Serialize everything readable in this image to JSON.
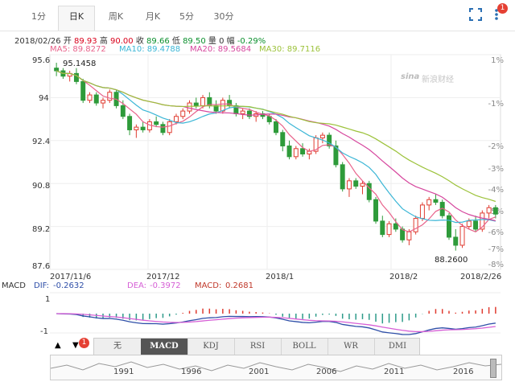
{
  "tabs": [
    {
      "label": "1分",
      "active": false
    },
    {
      "label": "日K",
      "active": true
    },
    {
      "label": "周K",
      "active": false
    },
    {
      "label": "月K",
      "active": false
    },
    {
      "label": "5分",
      "active": false
    },
    {
      "label": "30分",
      "active": false
    }
  ],
  "toolbar": {
    "fullscreen_icon": "fullscreen-icon",
    "more_icon": "more-vertical-icon",
    "badge": "1"
  },
  "quote": {
    "date": "2018/02/26",
    "open_label": "开",
    "open": "89.93",
    "high_label": "高",
    "high": "90.00",
    "close_label": "收",
    "close": "89.66",
    "low_label": "低",
    "low": "89.50",
    "vol_label": "量",
    "vol": "0",
    "chg_label": "幅",
    "chg": "-0.29%"
  },
  "ma": {
    "ma5": "MA5: 89.8272",
    "ma10": "MA10: 89.4788",
    "ma20": "MA20: 89.5684",
    "ma30": "MA30: 89.7116",
    "colors": {
      "ma5": "#e8628a",
      "ma10": "#3bb6d6",
      "ma20": "#d6479e",
      "ma30": "#9cc23a"
    }
  },
  "watermark": "新浪财经",
  "watermark_logo": "sina",
  "price_axis": [
    "95.6",
    "94",
    "92.4",
    "90.8",
    "89.2",
    "87.6"
  ],
  "pct_axis": [
    "1%",
    "-1%",
    "-2%",
    "-3%",
    "-4%",
    "-5%",
    "-6%",
    "-7%",
    "-8%"
  ],
  "date_axis": [
    "2017/11/6",
    "2017/12",
    "2018/1",
    "2018/2",
    "2018/2/26"
  ],
  "annotations": {
    "high": "95.1458",
    "low": "88.2600"
  },
  "chart_data": {
    "type": "candlestick",
    "x_start": "2017/11/6",
    "x_end": "2018/2/26",
    "ylim": [
      87.6,
      95.6
    ],
    "candles": [
      [
        95.1,
        95.3,
        94.8,
        95.0
      ],
      [
        95.0,
        95.1,
        94.7,
        94.8
      ],
      [
        94.8,
        95.0,
        94.6,
        94.9
      ],
      [
        94.9,
        95.1,
        94.5,
        94.6
      ],
      [
        94.6,
        94.7,
        93.8,
        93.9
      ],
      [
        93.9,
        94.2,
        93.8,
        94.1
      ],
      [
        94.1,
        94.2,
        93.7,
        93.8
      ],
      [
        93.8,
        94.0,
        93.6,
        93.9
      ],
      [
        93.9,
        94.3,
        93.8,
        94.2
      ],
      [
        94.2,
        94.3,
        93.6,
        93.7
      ],
      [
        93.7,
        93.9,
        93.2,
        93.3
      ],
      [
        93.3,
        93.4,
        92.6,
        92.8
      ],
      [
        92.8,
        93.0,
        92.5,
        92.9
      ],
      [
        92.9,
        93.1,
        92.7,
        92.8
      ],
      [
        92.8,
        93.2,
        92.7,
        93.1
      ],
      [
        93.1,
        93.3,
        92.9,
        93.0
      ],
      [
        93.0,
        93.1,
        92.6,
        92.7
      ],
      [
        92.7,
        93.2,
        92.6,
        93.1
      ],
      [
        93.1,
        93.4,
        93.0,
        93.3
      ],
      [
        93.3,
        93.6,
        93.2,
        93.5
      ],
      [
        93.5,
        93.9,
        93.4,
        93.8
      ],
      [
        93.8,
        94.0,
        93.6,
        93.7
      ],
      [
        93.7,
        94.1,
        93.6,
        94.0
      ],
      [
        94.0,
        94.2,
        93.6,
        93.7
      ],
      [
        93.7,
        93.9,
        93.4,
        93.5
      ],
      [
        93.5,
        94.0,
        93.4,
        93.9
      ],
      [
        93.9,
        94.1,
        93.6,
        93.7
      ],
      [
        93.7,
        93.8,
        93.3,
        93.4
      ],
      [
        93.4,
        93.6,
        93.2,
        93.5
      ],
      [
        93.5,
        93.6,
        93.2,
        93.3
      ],
      [
        93.3,
        93.5,
        93.1,
        93.4
      ],
      [
        93.4,
        93.5,
        93.2,
        93.3
      ],
      [
        93.3,
        93.4,
        93.0,
        93.1
      ],
      [
        93.1,
        93.2,
        92.6,
        92.7
      ],
      [
        92.7,
        92.8,
        92.0,
        92.2
      ],
      [
        92.2,
        92.4,
        91.7,
        91.8
      ],
      [
        91.8,
        92.2,
        91.7,
        92.1
      ],
      [
        92.1,
        92.3,
        91.8,
        91.9
      ],
      [
        91.9,
        92.1,
        91.7,
        92.0
      ],
      [
        92.0,
        92.6,
        91.9,
        92.5
      ],
      [
        92.5,
        92.7,
        92.3,
        92.6
      ],
      [
        92.6,
        92.7,
        92.1,
        92.2
      ],
      [
        92.2,
        92.4,
        91.4,
        91.5
      ],
      [
        91.5,
        91.6,
        90.5,
        90.6
      ],
      [
        90.6,
        91.0,
        90.3,
        90.9
      ],
      [
        90.9,
        91.0,
        90.6,
        90.7
      ],
      [
        90.7,
        90.9,
        90.4,
        90.8
      ],
      [
        90.8,
        90.9,
        90.1,
        90.2
      ],
      [
        90.2,
        90.3,
        89.3,
        89.4
      ],
      [
        89.4,
        89.6,
        88.8,
        88.9
      ],
      [
        88.9,
        89.4,
        88.8,
        89.3
      ],
      [
        89.3,
        89.5,
        89.0,
        89.1
      ],
      [
        89.1,
        89.2,
        88.6,
        88.7
      ],
      [
        88.7,
        89.1,
        88.5,
        89.0
      ],
      [
        89.0,
        89.6,
        88.9,
        89.5
      ],
      [
        89.5,
        90.1,
        89.4,
        90.0
      ],
      [
        90.0,
        90.3,
        89.8,
        90.2
      ],
      [
        90.2,
        90.4,
        90.0,
        90.1
      ],
      [
        90.1,
        90.2,
        89.5,
        89.6
      ],
      [
        89.6,
        89.7,
        88.7,
        88.8
      ],
      [
        88.8,
        89.1,
        88.3,
        88.5
      ],
      [
        88.5,
        89.3,
        88.4,
        89.2
      ],
      [
        89.2,
        89.5,
        89.1,
        89.4
      ],
      [
        89.4,
        89.6,
        89.0,
        89.1
      ],
      [
        89.1,
        89.8,
        89.0,
        89.7
      ],
      [
        89.7,
        90.0,
        89.5,
        89.9
      ],
      [
        89.9,
        90.0,
        89.5,
        89.66
      ]
    ],
    "macd": {
      "dif": "-0.2632",
      "dea": "-0.3972",
      "macd": "0.2681",
      "labels": {
        "dif": "DIF:",
        "dea": "DEA:",
        "macd": "MACD:"
      },
      "ticks": [
        "1",
        "-1"
      ]
    }
  },
  "indicators": [
    "无",
    "MACD",
    "KDJ",
    "RSI",
    "BOLL",
    "WR",
    "DMI"
  ],
  "indicator_active": "MACD",
  "indicator_badge": "1",
  "years": [
    "1991",
    "1996",
    "2001",
    "2006",
    "2011",
    "2016"
  ]
}
